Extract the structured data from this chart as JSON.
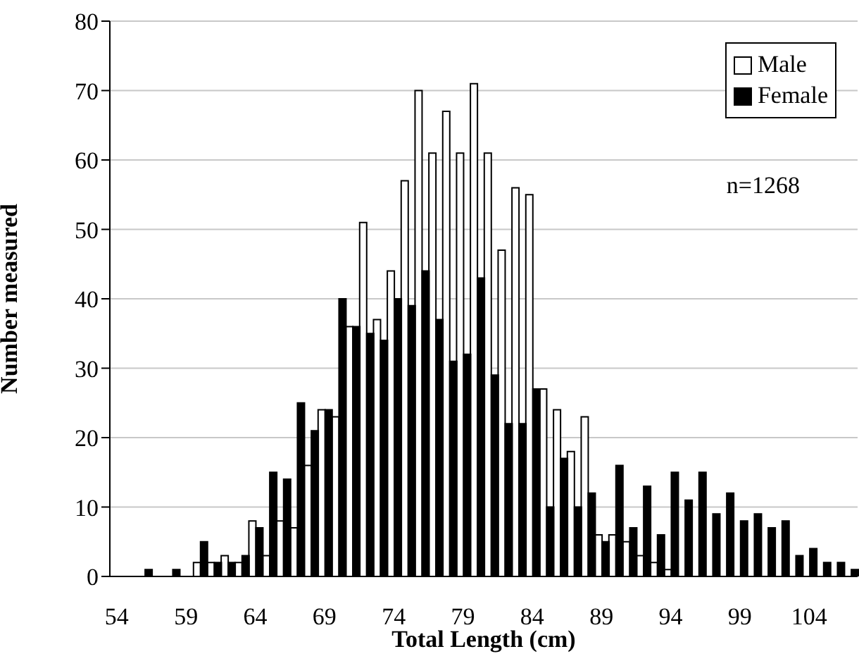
{
  "chart_data": {
    "type": "bar",
    "xlabel": "Total Length (cm)",
    "ylabel": "Number measured",
    "categories": [
      "54",
      null,
      null,
      null,
      null,
      "59",
      null,
      null,
      null,
      null,
      "64",
      null,
      null,
      null,
      null,
      "69",
      null,
      null,
      null,
      null,
      "74",
      null,
      null,
      null,
      null,
      "79",
      null,
      null,
      null,
      null,
      "84",
      null,
      null,
      null,
      null,
      "89",
      null,
      null,
      null,
      null,
      "94",
      null,
      null,
      null,
      null,
      "99",
      null,
      null,
      null,
      null,
      "104",
      null,
      null,
      null
    ],
    "series": [
      {
        "name": "Male",
        "color": "#ffffff",
        "values": [
          0,
          0,
          0,
          0,
          0,
          0,
          2,
          2,
          3,
          2,
          8,
          3,
          8,
          7,
          16,
          24,
          23,
          36,
          51,
          37,
          44,
          57,
          70,
          61,
          67,
          61,
          71,
          61,
          47,
          56,
          55,
          27,
          24,
          18,
          23,
          6,
          6,
          5,
          3,
          2,
          1,
          0,
          0,
          0,
          0,
          0,
          0,
          0,
          0,
          0,
          0,
          0,
          0,
          0
        ]
      },
      {
        "name": "Female",
        "color": "#000000",
        "values": [
          0,
          0,
          1,
          0,
          1,
          0,
          5,
          2,
          2,
          3,
          7,
          15,
          14,
          25,
          21,
          24,
          40,
          36,
          35,
          34,
          40,
          39,
          44,
          37,
          31,
          32,
          43,
          29,
          22,
          22,
          27,
          10,
          17,
          10,
          12,
          5,
          16,
          7,
          13,
          6,
          15,
          11,
          15,
          9,
          12,
          8,
          9,
          7,
          8,
          3,
          4,
          2,
          2,
          1
        ]
      }
    ],
    "ylim": [
      0,
      80
    ],
    "yticks": [
      0,
      10,
      20,
      30,
      40,
      50,
      60,
      70,
      80
    ],
    "grid": "y",
    "legend": "top right",
    "annotations": [
      "n=1268"
    ]
  }
}
